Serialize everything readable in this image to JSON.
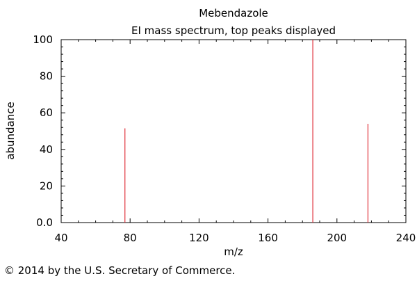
{
  "chart_data": {
    "type": "bar",
    "title": "Mebendazole",
    "subtitle": "EI mass spectrum, top peaks displayed",
    "xlabel": "m/z",
    "ylabel": "abundance",
    "xlim": [
      40,
      240
    ],
    "ylim": [
      0,
      100
    ],
    "x_ticks": [
      40,
      80,
      120,
      160,
      200,
      240
    ],
    "x_tick_labels": [
      "40",
      "80",
      "120",
      "160",
      "200",
      "240"
    ],
    "y_ticks": [
      0,
      20,
      40,
      60,
      80,
      100
    ],
    "y_tick_labels": [
      "0.0",
      "20",
      "40",
      "60",
      "80",
      "100"
    ],
    "grid": false,
    "peak_color": "#e0303a",
    "x": [
      77,
      186,
      218
    ],
    "values": [
      51.5,
      100,
      54
    ]
  },
  "footer": {
    "copyright": "© 2014 by the U.S. Secretary of Commerce."
  }
}
